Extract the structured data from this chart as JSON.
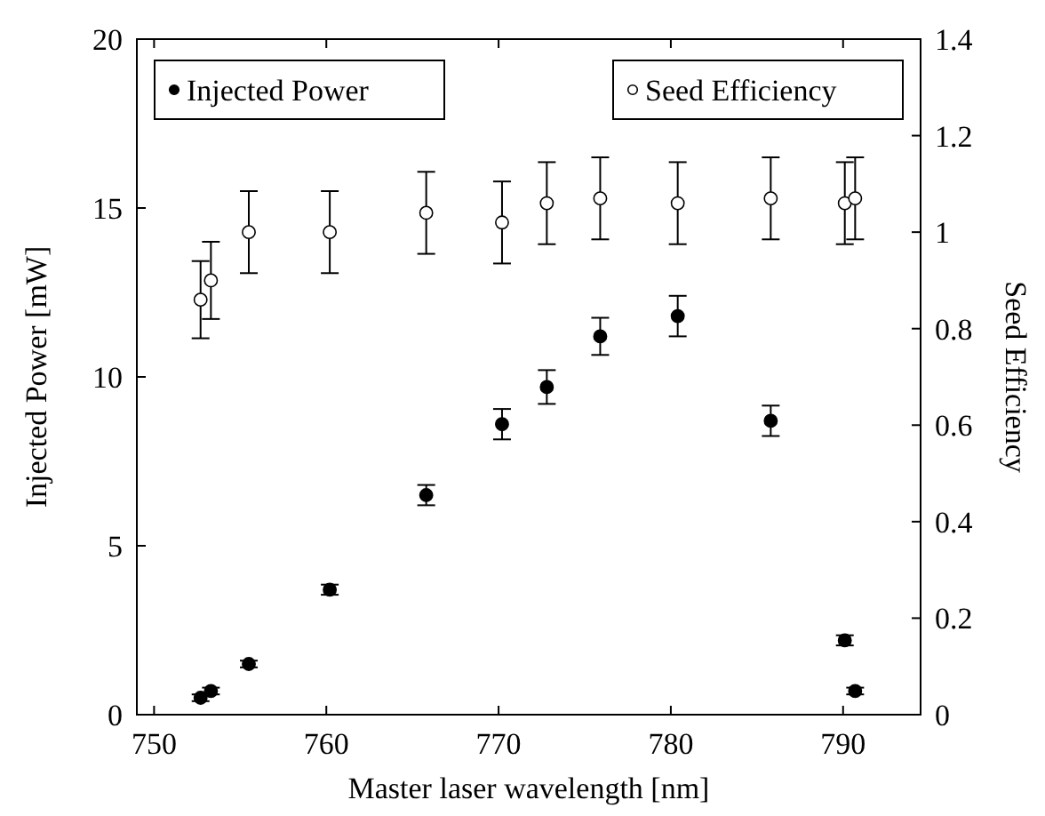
{
  "chart_data": {
    "type": "scatter",
    "xlabel": "Master laser wavelength [nm]",
    "ylabel": "Injected Power [mW]",
    "y2label": "Seed Efficiency",
    "x": [
      752.7,
      753.3,
      755.5,
      760.2,
      765.8,
      770.2,
      772.8,
      775.9,
      780.4,
      785.8,
      790.1,
      790.7
    ],
    "xlim": [
      749,
      794.5
    ],
    "xticks": [
      750,
      760,
      770,
      780,
      790
    ],
    "ylim": [
      0,
      20
    ],
    "yticks": [
      0,
      5,
      10,
      15,
      20
    ],
    "y2lim": [
      0,
      1.4
    ],
    "y2ticks": [
      0,
      0.2,
      0.4,
      0.6,
      0.8,
      1,
      1.2,
      1.4
    ],
    "legend": "top",
    "grid": false,
    "series": [
      {
        "name": "Injected Power",
        "color": "#000000",
        "marker": "circle",
        "values": [
          0.5,
          0.7,
          1.5,
          3.7,
          6.5,
          8.6,
          9.7,
          11.2,
          11.8,
          8.7,
          2.2,
          0.7
        ],
        "errors": [
          0.1,
          0.1,
          0.1,
          0.15,
          0.3,
          0.45,
          0.5,
          0.55,
          0.6,
          0.45,
          0.15,
          0.1
        ]
      },
      {
        "name": "Seed Efficiency",
        "color": "#ffffff",
        "marker": "circle",
        "axis": "y2",
        "values": [
          0.86,
          0.9,
          1.0,
          1.0,
          1.04,
          1.02,
          1.06,
          1.07,
          1.06,
          1.07,
          1.06,
          1.07
        ],
        "errors": [
          0.08,
          0.08,
          0.085,
          0.085,
          0.085,
          0.085,
          0.085,
          0.085,
          0.085,
          0.085,
          0.085,
          0.085
        ]
      }
    ]
  }
}
